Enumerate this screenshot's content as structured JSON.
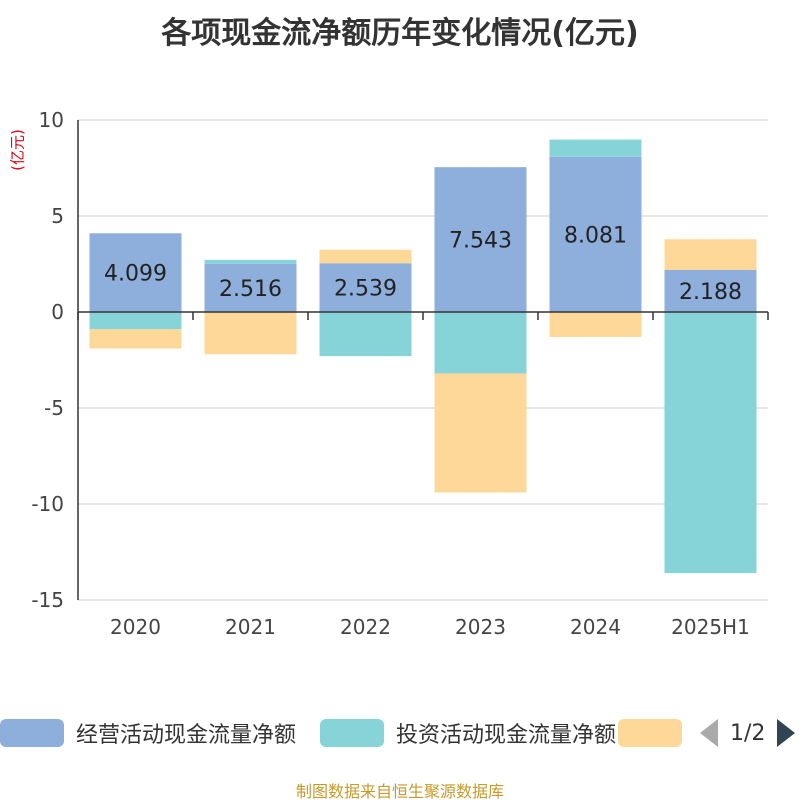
{
  "title": "各项现金流净额历年变化情况(亿元)",
  "unit_label": "(亿元)",
  "footer": "制图数据来自恒生聚源数据库",
  "legend": {
    "items": [
      {
        "label": "经营活动现金流量净额",
        "color": "#8eaedb"
      },
      {
        "label": "投资活动现金流量净额",
        "color": "#87d4d8"
      },
      {
        "label": "",
        "color": "#fdd899"
      }
    ],
    "page_indicator": "1/2"
  },
  "chart_data": {
    "type": "bar",
    "stacked": true,
    "categories": [
      "2020",
      "2021",
      "2022",
      "2023",
      "2024",
      "2025H1"
    ],
    "ylim": [
      -15,
      10
    ],
    "yticks": [
      10,
      5,
      0,
      -5,
      -10,
      -15
    ],
    "grid": true,
    "legend_position": "bottom",
    "series": [
      {
        "name": "经营活动现金流量净额",
        "color": "#8eaedb",
        "values": [
          4.099,
          2.516,
          2.539,
          7.543,
          8.081,
          2.188
        ],
        "labels": true
      },
      {
        "name": "投资活动现金流量净额",
        "color": "#87d4d8",
        "values": [
          -0.9,
          0.2,
          -2.3,
          -3.2,
          0.9,
          -13.6
        ]
      },
      {
        "name": "",
        "color": "#fdd899",
        "values": [
          -1.0,
          -2.2,
          0.7,
          -6.2,
          -1.3,
          1.6
        ]
      }
    ]
  }
}
